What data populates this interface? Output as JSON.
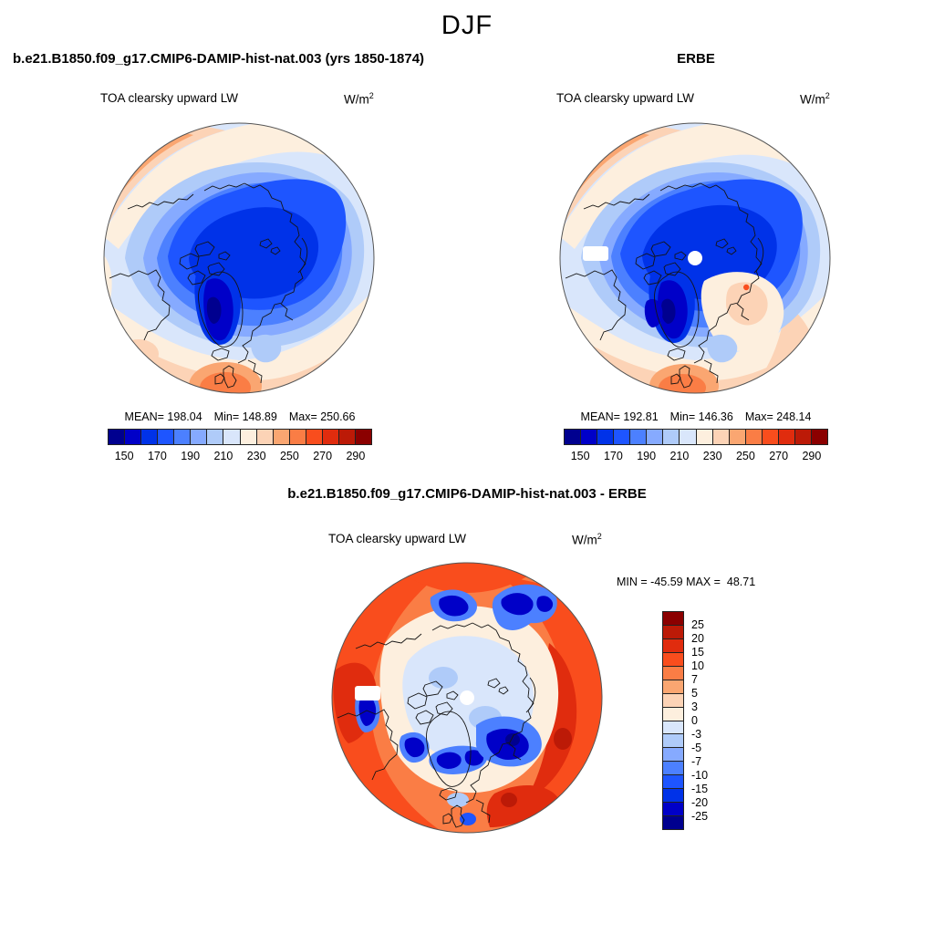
{
  "title": "DJF",
  "field_label": "TOA clearsky upward LW",
  "units": {
    "base": "W/m",
    "exp": "2"
  },
  "panels": {
    "model": {
      "header": "b.e21.B1850.f09_g17.CMIP6-DAMIP-hist-nat.003 (yrs 1850-1874)",
      "stats": [
        "MEAN= 198.04",
        "Min= 148.89",
        "Max= 250.66"
      ]
    },
    "obs": {
      "header": "ERBE",
      "stats": [
        "MEAN= 192.81",
        "Min= 146.36",
        "Max= 248.14"
      ]
    },
    "diff": {
      "header": "b.e21.B1850.f09_g17.CMIP6-DAMIP-hist-nat.003 - ERBE",
      "minmax_line": "MIN = -45.59 MAX =  48.71"
    }
  },
  "colorbar": {
    "ticks": [
      "150",
      "170",
      "190",
      "210",
      "230",
      "250",
      "270",
      "290"
    ],
    "palette": [
      "#00008F",
      "#0000C8",
      "#0032E8",
      "#1E55FF",
      "#4C80FF",
      "#86AAFF",
      "#AFCBF9",
      "#D9E6FB",
      "#FDEFDE",
      "#FCD3B6",
      "#FAA671",
      "#FA7D45",
      "#F94D1D",
      "#E02C0E",
      "#BC1A07",
      "#8B0000"
    ]
  },
  "diff_colorbar": {
    "labels": [
      "25",
      "20",
      "15",
      "10",
      "7",
      "5",
      "3",
      "0",
      "-3",
      "-5",
      "-7",
      "-10",
      "-15",
      "-20",
      "-25"
    ]
  },
  "chart_data": [
    {
      "type": "heatmap",
      "subtype": "filled-contour-map",
      "projection": "north-polar-stereographic",
      "season": "DJF",
      "dataset": "b.e21.B1850.f09_g17.CMIP6-DAMIP-hist-nat.003 (yrs 1850-1874)",
      "variable": "TOA clearsky upward LW",
      "units": "W/m2",
      "stats": {
        "mean": 198.04,
        "min": 148.89,
        "max": 250.66
      },
      "contour_levels": [
        150,
        160,
        170,
        180,
        190,
        200,
        210,
        220,
        230,
        240,
        250,
        260,
        270,
        280,
        290
      ],
      "labeled_ticks": [
        150,
        170,
        190,
        210,
        230,
        250,
        270,
        290
      ],
      "colorbar_orientation": "horizontal",
      "legend_position": "below-map"
    },
    {
      "type": "heatmap",
      "subtype": "filled-contour-map",
      "projection": "north-polar-stereographic",
      "season": "DJF",
      "dataset": "ERBE",
      "variable": "TOA clearsky upward LW",
      "units": "W/m2",
      "stats": {
        "mean": 192.81,
        "min": 146.36,
        "max": 248.14
      },
      "contour_levels": [
        150,
        160,
        170,
        180,
        190,
        200,
        210,
        220,
        230,
        240,
        250,
        260,
        270,
        280,
        290
      ],
      "labeled_ticks": [
        150,
        170,
        190,
        210,
        230,
        250,
        270,
        290
      ],
      "colorbar_orientation": "horizontal",
      "legend_position": "below-map"
    },
    {
      "type": "heatmap",
      "subtype": "filled-contour-difference-map",
      "projection": "north-polar-stereographic",
      "season": "DJF",
      "dataset": "b.e21.B1850.f09_g17.CMIP6-DAMIP-hist-nat.003 - ERBE",
      "variable": "TOA clearsky upward LW",
      "units": "W/m2",
      "stats": {
        "min": -45.59,
        "max": 48.71
      },
      "contour_levels": [
        -25,
        -20,
        -15,
        -10,
        -7,
        -5,
        -3,
        0,
        3,
        5,
        7,
        10,
        15,
        20,
        25
      ],
      "colorbar_orientation": "vertical",
      "legend_position": "right-of-map"
    }
  ]
}
